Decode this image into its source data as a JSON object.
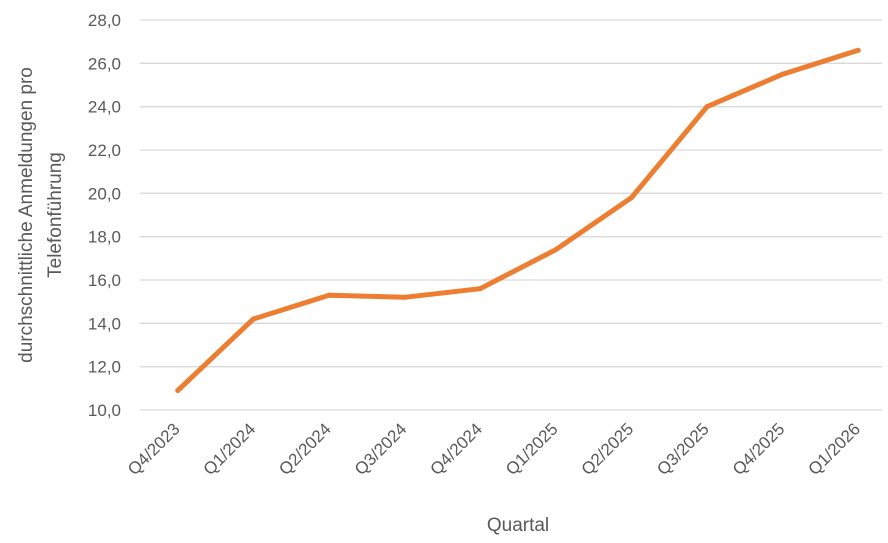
{
  "chart_data": {
    "type": "line",
    "title": "",
    "xlabel": "Quartal",
    "ylabel_lines": [
      "durchschnittliche Anmeldungen pro",
      "Telefonführung"
    ],
    "categories": [
      "Q4/2023",
      "Q1/2024",
      "Q2/2024",
      "Q3/2024",
      "Q4/2024",
      "Q1/2025",
      "Q2/2025",
      "Q3/2025",
      "Q4/2025",
      "Q1/2026"
    ],
    "series": [
      {
        "values": [
          10.9,
          14.2,
          15.3,
          15.2,
          15.6,
          17.4,
          19.8,
          24.0,
          25.5,
          26.6
        ],
        "color": "#ed7d31"
      }
    ],
    "ylim": [
      10,
      28
    ],
    "yticks": [
      "10,0",
      "12,0",
      "14,0",
      "16,0",
      "18,0",
      "20,0",
      "22,0",
      "24,0",
      "26,0",
      "28,0"
    ],
    "grid": true,
    "legend": "none"
  }
}
